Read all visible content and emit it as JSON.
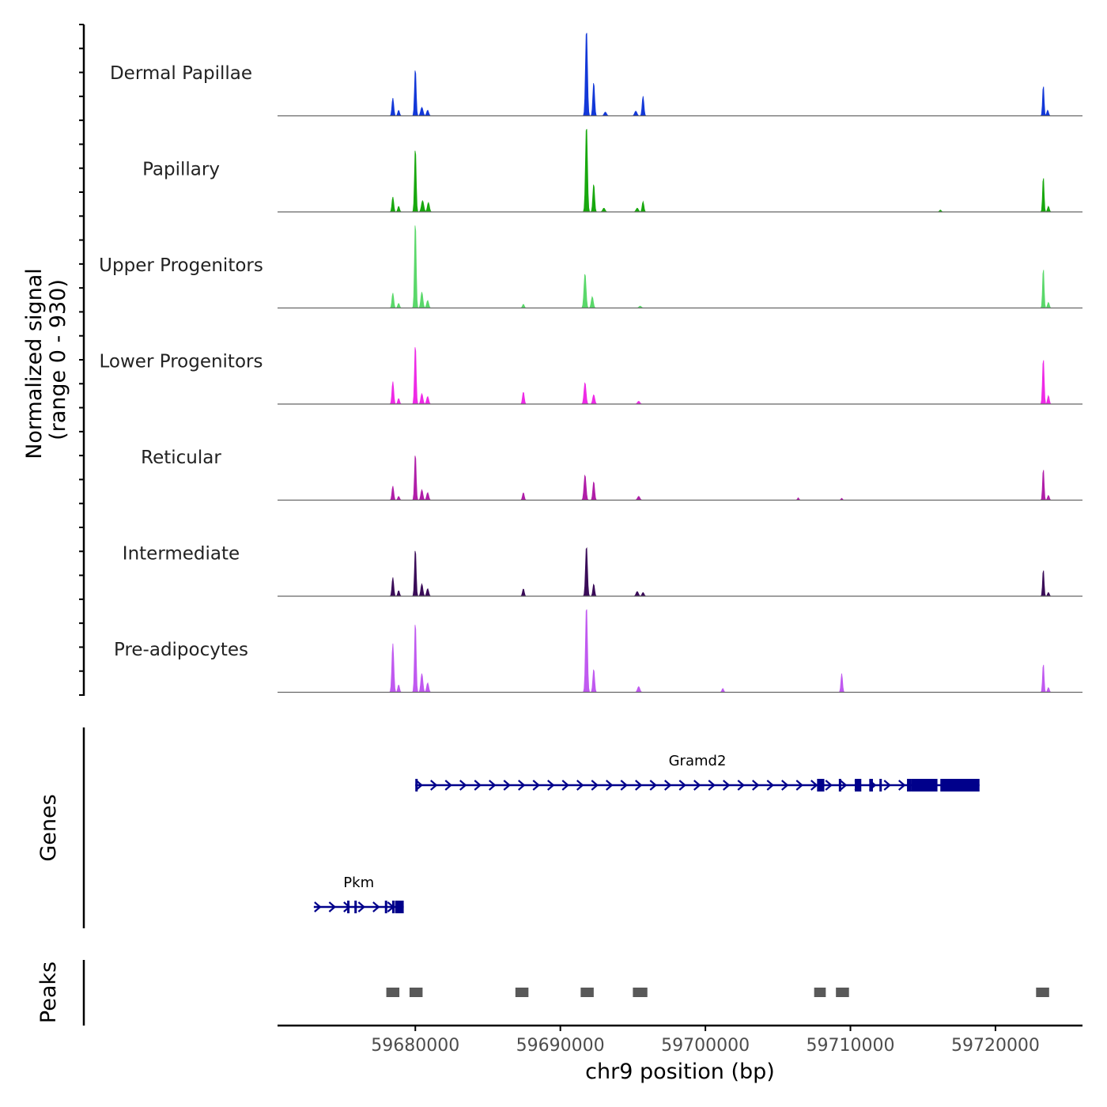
{
  "chart_data": {
    "type": "area",
    "title": "",
    "chromosome": "chr9",
    "xlabel": "chr9 position (bp)",
    "xlim": [
      59670500,
      59726000
    ],
    "xticks": [
      59680000,
      59690000,
      59700000,
      59710000,
      59720000
    ],
    "xtick_labels": [
      "59680000",
      "59690000",
      "59700000",
      "59710000",
      "59720000"
    ],
    "signal_ylabel": "Normalized signal",
    "signal_range_label": "(range 0 - 930)",
    "signal_ylim": [
      0,
      930
    ],
    "series": [
      {
        "name": "Dermal Papillae",
        "color": "#1338d8",
        "peaks": [
          {
            "pos": 59678450,
            "height": 190,
            "width": 60
          },
          {
            "pos": 59678850,
            "height": 60,
            "width": 60
          },
          {
            "pos": 59680000,
            "height": 510,
            "width": 55
          },
          {
            "pos": 59680450,
            "height": 90,
            "width": 80
          },
          {
            "pos": 59680850,
            "height": 60,
            "width": 70
          },
          {
            "pos": 59691800,
            "height": 930,
            "width": 65
          },
          {
            "pos": 59692300,
            "height": 360,
            "width": 60
          },
          {
            "pos": 59693100,
            "height": 40,
            "width": 80
          },
          {
            "pos": 59695200,
            "height": 50,
            "width": 80
          },
          {
            "pos": 59695700,
            "height": 210,
            "width": 60
          },
          {
            "pos": 59723300,
            "height": 330,
            "width": 50
          },
          {
            "pos": 59723600,
            "height": 60,
            "width": 60
          }
        ]
      },
      {
        "name": "Papillary",
        "color": "#18a80e",
        "peaks": [
          {
            "pos": 59678450,
            "height": 160,
            "width": 60
          },
          {
            "pos": 59678850,
            "height": 60,
            "width": 60
          },
          {
            "pos": 59680000,
            "height": 690,
            "width": 55
          },
          {
            "pos": 59680500,
            "height": 120,
            "width": 80
          },
          {
            "pos": 59680900,
            "height": 100,
            "width": 70
          },
          {
            "pos": 59691800,
            "height": 930,
            "width": 65
          },
          {
            "pos": 59692300,
            "height": 300,
            "width": 60
          },
          {
            "pos": 59693000,
            "height": 40,
            "width": 80
          },
          {
            "pos": 59695300,
            "height": 40,
            "width": 80
          },
          {
            "pos": 59695700,
            "height": 110,
            "width": 60
          },
          {
            "pos": 59716200,
            "height": 20,
            "width": 60
          },
          {
            "pos": 59723300,
            "height": 380,
            "width": 50
          },
          {
            "pos": 59723650,
            "height": 60,
            "width": 60
          }
        ]
      },
      {
        "name": "Upper Progenitors",
        "color": "#5ad86a",
        "peaks": [
          {
            "pos": 59678450,
            "height": 160,
            "width": 60
          },
          {
            "pos": 59678850,
            "height": 50,
            "width": 60
          },
          {
            "pos": 59680000,
            "height": 930,
            "width": 55
          },
          {
            "pos": 59680450,
            "height": 170,
            "width": 70
          },
          {
            "pos": 59680850,
            "height": 80,
            "width": 70
          },
          {
            "pos": 59687450,
            "height": 40,
            "width": 60
          },
          {
            "pos": 59691700,
            "height": 370,
            "width": 70
          },
          {
            "pos": 59692200,
            "height": 120,
            "width": 70
          },
          {
            "pos": 59695500,
            "height": 20,
            "width": 80
          },
          {
            "pos": 59723300,
            "height": 430,
            "width": 50
          },
          {
            "pos": 59723650,
            "height": 60,
            "width": 60
          }
        ]
      },
      {
        "name": "Lower Progenitors",
        "color": "#ee2ae6",
        "peaks": [
          {
            "pos": 59678450,
            "height": 240,
            "width": 60
          },
          {
            "pos": 59678850,
            "height": 60,
            "width": 60
          },
          {
            "pos": 59680000,
            "height": 640,
            "width": 55
          },
          {
            "pos": 59680450,
            "height": 110,
            "width": 70
          },
          {
            "pos": 59680850,
            "height": 80,
            "width": 70
          },
          {
            "pos": 59687450,
            "height": 130,
            "width": 60
          },
          {
            "pos": 59691700,
            "height": 230,
            "width": 70
          },
          {
            "pos": 59692300,
            "height": 100,
            "width": 70
          },
          {
            "pos": 59695400,
            "height": 30,
            "width": 80
          },
          {
            "pos": 59723300,
            "height": 490,
            "width": 55
          },
          {
            "pos": 59723650,
            "height": 90,
            "width": 60
          }
        ]
      },
      {
        "name": "Reticular",
        "color": "#b01ea8",
        "peaks": [
          {
            "pos": 59678450,
            "height": 150,
            "width": 60
          },
          {
            "pos": 59678850,
            "height": 40,
            "width": 60
          },
          {
            "pos": 59680000,
            "height": 500,
            "width": 55
          },
          {
            "pos": 59680450,
            "height": 110,
            "width": 70
          },
          {
            "pos": 59680850,
            "height": 80,
            "width": 70
          },
          {
            "pos": 59687450,
            "height": 80,
            "width": 60
          },
          {
            "pos": 59691700,
            "height": 270,
            "width": 70
          },
          {
            "pos": 59692300,
            "height": 200,
            "width": 60
          },
          {
            "pos": 59695400,
            "height": 40,
            "width": 80
          },
          {
            "pos": 59706400,
            "height": 25,
            "width": 50
          },
          {
            "pos": 59709400,
            "height": 20,
            "width": 50
          },
          {
            "pos": 59723300,
            "height": 340,
            "width": 50
          },
          {
            "pos": 59723650,
            "height": 50,
            "width": 60
          }
        ]
      },
      {
        "name": "Intermediate",
        "color": "#3a0c58",
        "peaks": [
          {
            "pos": 59678450,
            "height": 200,
            "width": 60
          },
          {
            "pos": 59678850,
            "height": 60,
            "width": 60
          },
          {
            "pos": 59680000,
            "height": 510,
            "width": 55
          },
          {
            "pos": 59680450,
            "height": 130,
            "width": 70
          },
          {
            "pos": 59680850,
            "height": 80,
            "width": 70
          },
          {
            "pos": 59687450,
            "height": 80,
            "width": 60
          },
          {
            "pos": 59691800,
            "height": 540,
            "width": 65
          },
          {
            "pos": 59692300,
            "height": 130,
            "width": 60
          },
          {
            "pos": 59695300,
            "height": 50,
            "width": 80
          },
          {
            "pos": 59695700,
            "height": 40,
            "width": 70
          },
          {
            "pos": 59723300,
            "height": 290,
            "width": 50
          },
          {
            "pos": 59723650,
            "height": 40,
            "width": 60
          }
        ]
      },
      {
        "name": "Pre-adipocytes",
        "color": "#c059f0",
        "peaks": [
          {
            "pos": 59678450,
            "height": 520,
            "width": 65
          },
          {
            "pos": 59678850,
            "height": 80,
            "width": 60
          },
          {
            "pos": 59680000,
            "height": 760,
            "width": 55
          },
          {
            "pos": 59680450,
            "height": 200,
            "width": 70
          },
          {
            "pos": 59680850,
            "height": 100,
            "width": 70
          },
          {
            "pos": 59691800,
            "height": 930,
            "width": 65
          },
          {
            "pos": 59692300,
            "height": 250,
            "width": 60
          },
          {
            "pos": 59695400,
            "height": 60,
            "width": 80
          },
          {
            "pos": 59701200,
            "height": 40,
            "width": 60
          },
          {
            "pos": 59709400,
            "height": 200,
            "width": 55
          },
          {
            "pos": 59723300,
            "height": 310,
            "width": 50
          },
          {
            "pos": 59723650,
            "height": 50,
            "width": 60
          }
        ]
      }
    ],
    "genes_label": "Genes",
    "genes": [
      {
        "name": "Gramd2",
        "color": "#00008b",
        "strand": "+",
        "start": 59680000,
        "end": 59718900,
        "exons": [
          [
            59680000,
            59680100
          ],
          [
            59707700,
            59708200
          ],
          [
            59709200,
            59709350
          ],
          [
            59710300,
            59710750
          ],
          [
            59711300,
            59711550
          ],
          [
            59712000,
            59712100
          ],
          [
            59713900,
            59714200
          ],
          [
            59714200,
            59716000
          ],
          [
            59716200,
            59718900
          ]
        ]
      },
      {
        "name": "Pkm",
        "color": "#00008b",
        "strand": "+",
        "start": 59673000,
        "end": 59679200,
        "exons": [
          [
            59675300,
            59675450
          ],
          [
            59675800,
            59675950
          ],
          [
            59677900,
            59678050
          ],
          [
            59678400,
            59678550
          ],
          [
            59678600,
            59679200
          ]
        ]
      }
    ],
    "peaks_label": "Peaks",
    "peak_color": "#595959",
    "peak_regions": [
      [
        59678000,
        59678900
      ],
      [
        59679600,
        59680500
      ],
      [
        59686900,
        59687800
      ],
      [
        59691400,
        59692300
      ],
      [
        59695000,
        59696000
      ],
      [
        59707500,
        59708300
      ],
      [
        59709000,
        59709900
      ],
      [
        59722800,
        59723700
      ]
    ]
  }
}
